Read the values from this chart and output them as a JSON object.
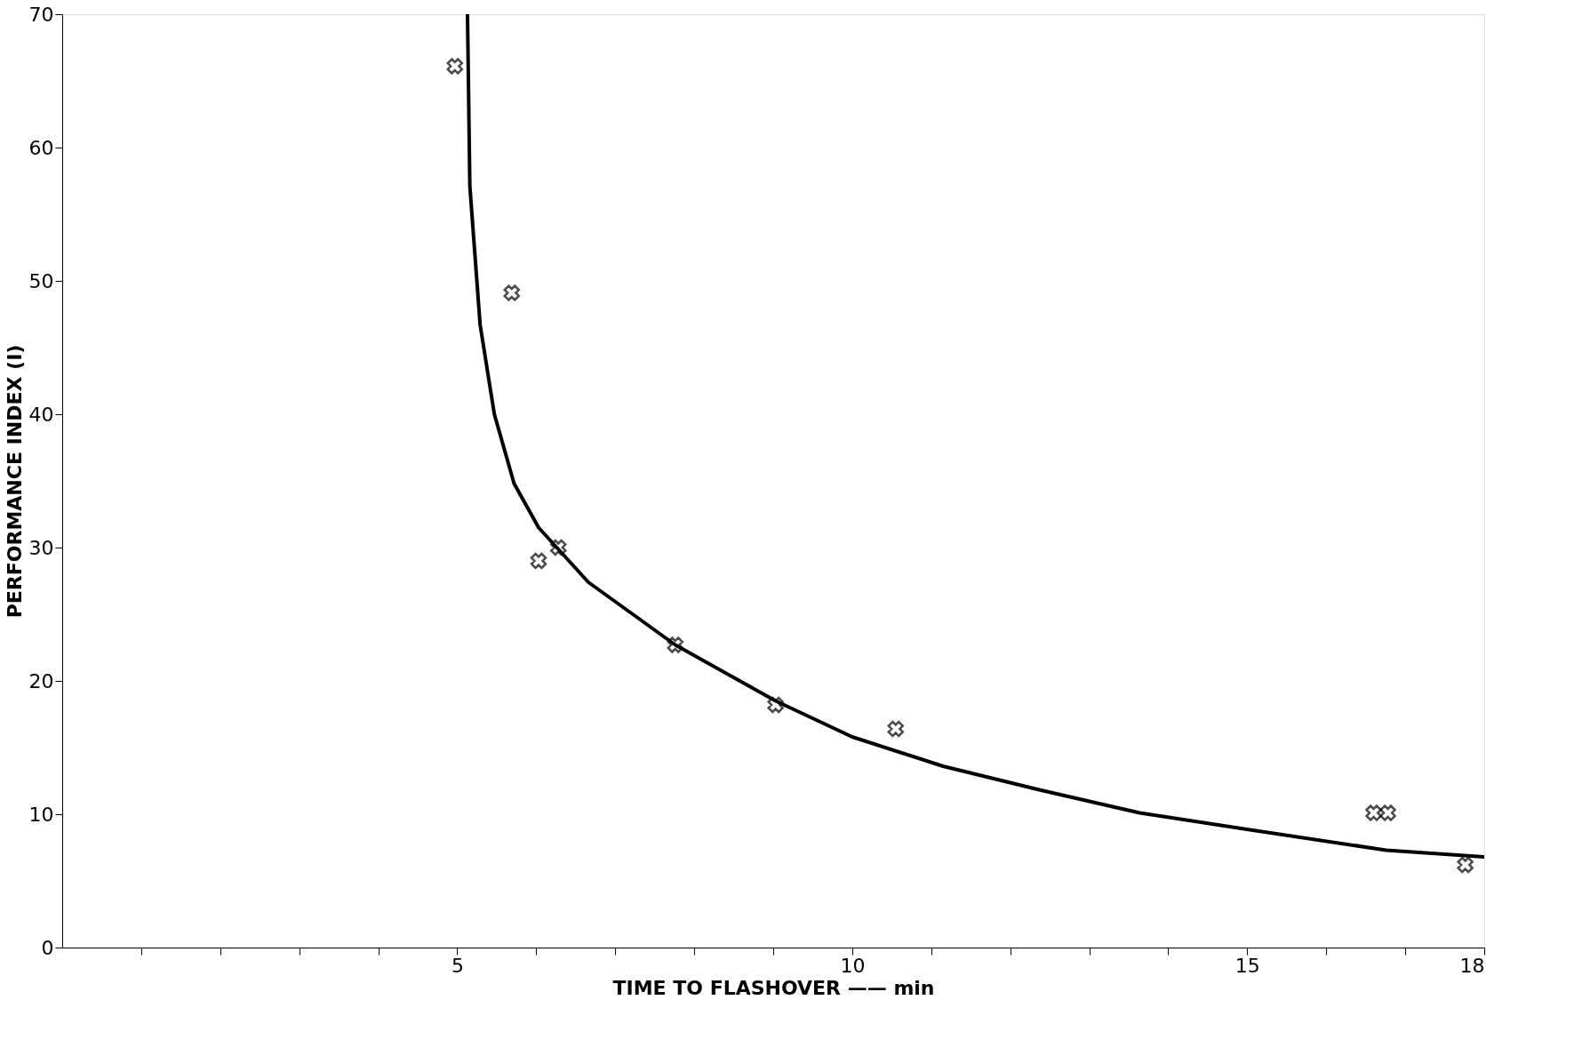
{
  "chart_data": {
    "type": "scatter",
    "xlabel": "TIME TO FLASHOVER —— min",
    "ylabel": "PERFORMANCE INDEX (I)",
    "xlim": [
      0,
      18
    ],
    "ylim": [
      0,
      70
    ],
    "xticks": [
      {
        "value": 1,
        "label": null
      },
      {
        "value": 2,
        "label": null
      },
      {
        "value": 3,
        "label": null
      },
      {
        "value": 4,
        "label": null
      },
      5,
      {
        "value": 6,
        "label": null
      },
      {
        "value": 7,
        "label": null
      },
      {
        "value": 8,
        "label": null
      },
      {
        "value": 9,
        "label": null
      },
      10,
      {
        "value": 11,
        "label": null
      },
      {
        "value": 12,
        "label": null
      },
      {
        "value": 13,
        "label": null
      },
      {
        "value": 14,
        "label": null
      },
      15,
      {
        "value": 16,
        "label": null
      },
      {
        "value": 17,
        "label": null
      },
      18
    ],
    "yticks": [
      0,
      10,
      20,
      30,
      40,
      50,
      60,
      70
    ],
    "grid": false,
    "series": [
      {
        "marker": "cross",
        "color": "#000000",
        "x": [
          4.97,
          5.69,
          6.03,
          6.28,
          7.76,
          9.03,
          10.55,
          16.6,
          16.78,
          17.76
        ],
        "values": [
          66.1,
          49.1,
          29.0,
          30.0,
          22.7,
          18.2,
          16.4,
          10.1,
          10.1,
          6.2
        ]
      },
      {
        "type": "line",
        "line_style": "solid",
        "color": "#000000",
        "x": [
          5.13,
          5.16,
          5.29,
          5.47,
          5.72,
          6.03,
          6.66,
          7.76,
          9.03,
          10.0,
          11.15,
          12.39,
          13.64,
          15.07,
          16.76,
          18.0
        ],
        "values": [
          70,
          57.1,
          46.7,
          40.0,
          34.8,
          31.5,
          27.4,
          22.7,
          18.5,
          15.8,
          13.6,
          11.8,
          10.1,
          8.8,
          7.3,
          6.8
        ]
      }
    ]
  }
}
